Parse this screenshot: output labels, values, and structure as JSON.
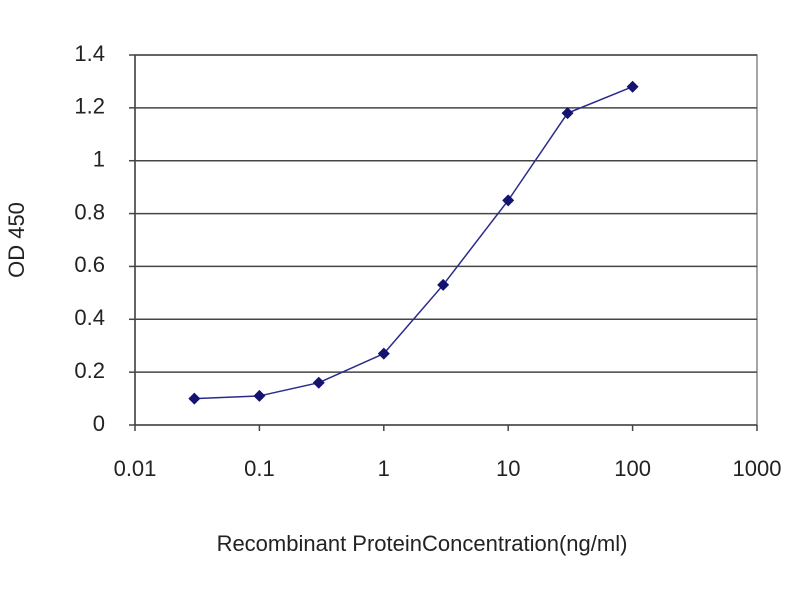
{
  "chart_data": {
    "type": "line",
    "x_label": "Recombinant ProteinConcentration(ng/ml)",
    "y_label": "OD 450",
    "x": [
      0.03,
      0.1,
      0.3,
      1,
      3,
      10,
      30,
      100
    ],
    "values": [
      0.1,
      0.11,
      0.16,
      0.27,
      0.53,
      0.85,
      1.18,
      1.28
    ],
    "color": "#2a2a8c",
    "x_log": true,
    "xlim": [
      0.01,
      1000
    ],
    "xticks": [
      0.01,
      0.1,
      1,
      10,
      100,
      1000
    ],
    "ylim": [
      0,
      1.4
    ],
    "yticks": [
      0,
      0.2,
      0.4,
      0.6,
      0.8,
      1,
      1.2,
      1.4
    ],
    "grid": true
  }
}
